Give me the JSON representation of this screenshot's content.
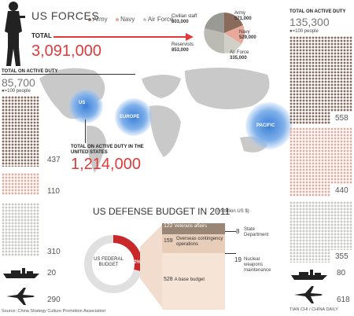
{
  "header": {
    "title": "US FORCES",
    "legend": [
      {
        "label": "Army",
        "color": "#8a6a5a"
      },
      {
        "label": "Navy",
        "color": "#e8a89a"
      },
      {
        "label": "Air Force",
        "color": "#c8c8c0"
      }
    ],
    "total_label": "TOTAL",
    "total_value": "3,091,000"
  },
  "pie": {
    "civilian": {
      "label": "Civilian staff",
      "value": "803,000"
    },
    "army": {
      "label": "Army",
      "value": "571,000"
    },
    "navy": {
      "label": "Navy",
      "value": "529,000"
    },
    "reservists": {
      "label": "Reservists",
      "value": "853,000"
    },
    "airforce": {
      "label": "Air Force",
      "value": "335,000"
    }
  },
  "left_panel": {
    "label": "TOTAL ON ACTIVE DUTY",
    "value": "85,700",
    "unit": "=100 people",
    "army": "437",
    "navy": "110",
    "airforce": "310",
    "ships": "20",
    "planes": "290"
  },
  "right_panel": {
    "label": "TOTAL ON ACTIVE DUTY",
    "value": "135,300",
    "unit": "=100 people",
    "army": "558",
    "navy": "440",
    "airforce": "355",
    "ships": "80",
    "planes": "618"
  },
  "map": {
    "us_label": "US",
    "europe_label": "EUROPE",
    "pacific_label": "PACIFIC",
    "us_total_label": "TOTAL ON ACTIVE DUTY IN THE UNITED STATES",
    "us_total_value": "1,214,000"
  },
  "budget": {
    "title": "US DEFENSE BUDGET IN 2011",
    "unit": "(in billion US $)",
    "donut_label": "US FEDERAL BUDGET",
    "donut_pct": "22%",
    "rows": [
      {
        "value": "122",
        "label": "Veterans affairs"
      },
      {
        "value": "159",
        "label": "Overseas contingency operations"
      },
      {
        "value": "528",
        "label": "A base budget"
      }
    ],
    "side": [
      {
        "value": "8",
        "label": "State Department"
      },
      {
        "value": "19",
        "label": "Nuclear weapons maintenance"
      }
    ]
  },
  "footer": {
    "source": "Source: China Strategy Culture Promotion Association",
    "credit": "TIAN CHI / CHINA DAILY"
  }
}
